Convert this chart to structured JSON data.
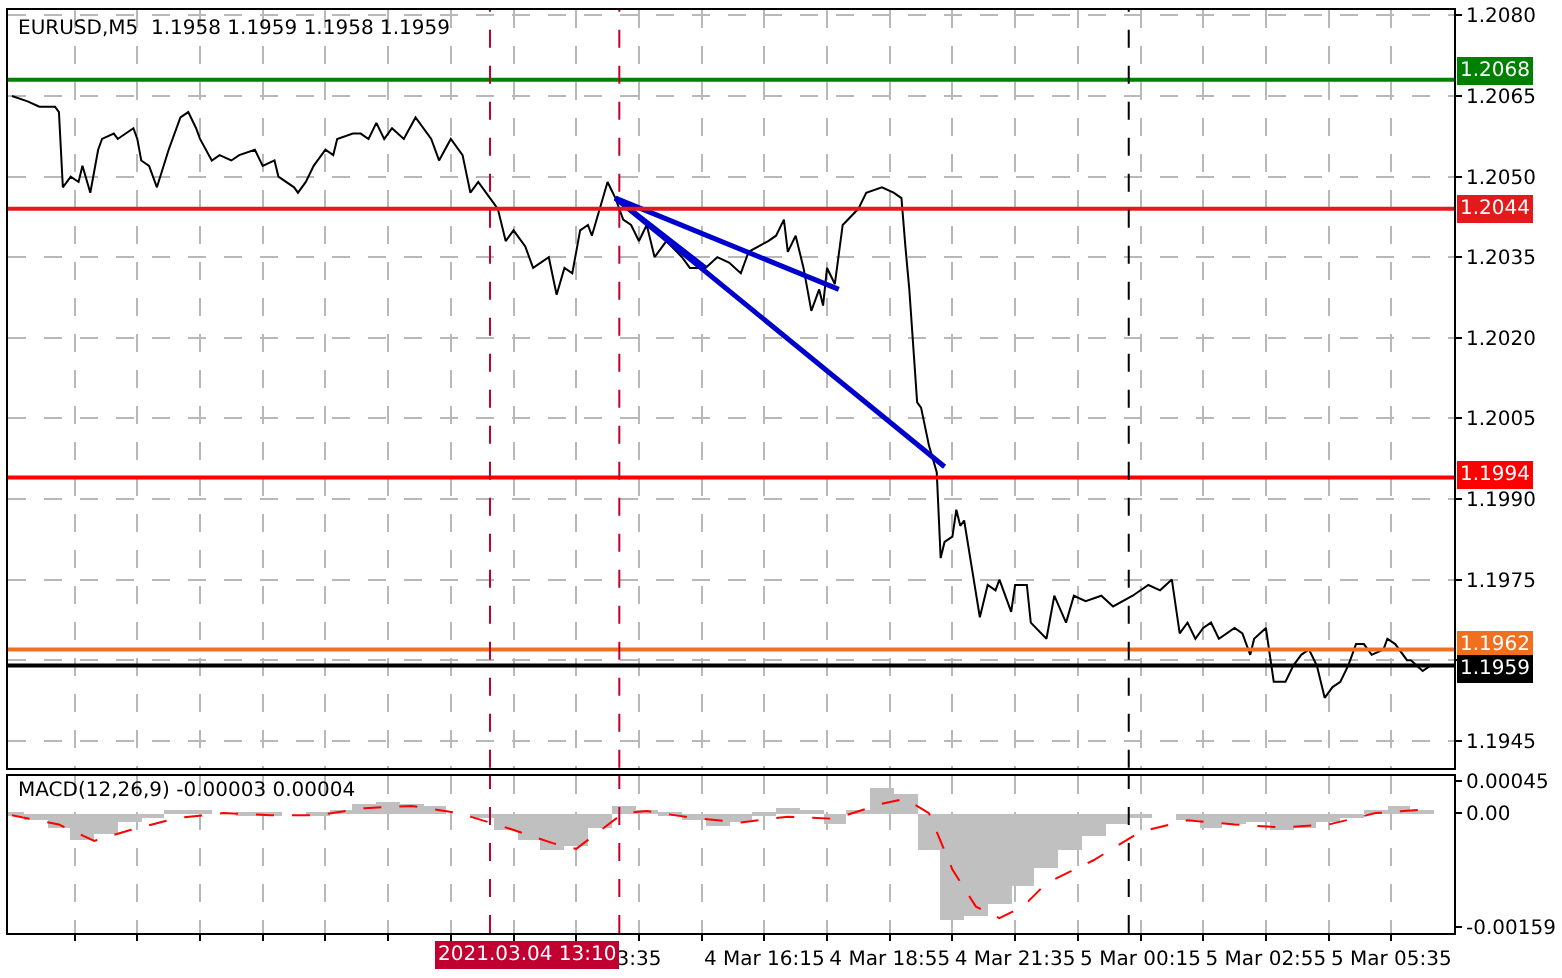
{
  "chart_data": [
    {
      "type": "line",
      "title": "EURUSD,M5  1.1958 1.1959 1.1958 1.1959",
      "series": [
        {
          "color": "#000000",
          "x": [
            "2021-03-04T00:15",
            "2021-03-04T00:35",
            "2021-03-04T00:50",
            "2021-03-04T01:10",
            "2021-03-04T01:15",
            "2021-03-04T01:20",
            "2021-03-04T01:30",
            "2021-03-04T01:40",
            "2021-03-04T01:45",
            "2021-03-04T01:55",
            "2021-03-04T02:05",
            "2021-03-04T02:10",
            "2021-03-04T02:25",
            "2021-03-04T02:30",
            "2021-03-04T02:50",
            "2021-03-04T02:55",
            "2021-03-04T03:00",
            "2021-03-04T03:10",
            "2021-03-04T03:20",
            "2021-03-04T03:35",
            "2021-03-04T03:50",
            "2021-03-04T04:00",
            "2021-03-04T04:10",
            "2021-03-04T04:15",
            "2021-03-04T04:30",
            "2021-03-04T04:40",
            "2021-03-04T04:55",
            "2021-03-04T05:05",
            "2021-03-04T05:25",
            "2021-03-04T05:35",
            "2021-03-04T05:50",
            "2021-03-04T05:55",
            "2021-03-04T06:15",
            "2021-03-04T06:20",
            "2021-03-04T06:30",
            "2021-03-04T06:40",
            "2021-03-04T06:55",
            "2021-03-04T07:05",
            "2021-03-04T07:10",
            "2021-03-04T07:30",
            "2021-03-04T07:40",
            "2021-03-04T07:50",
            "2021-03-04T08:00",
            "2021-03-04T08:10",
            "2021-03-04T08:20",
            "2021-03-04T08:35",
            "2021-03-04T08:50",
            "2021-03-04T09:10",
            "2021-03-04T09:20",
            "2021-03-04T09:35",
            "2021-03-04T09:50",
            "2021-03-04T10:00",
            "2021-03-04T10:10",
            "2021-03-04T10:25",
            "2021-03-04T10:35",
            "2021-03-04T10:45",
            "2021-03-04T10:55",
            "2021-03-04T11:10",
            "2021-03-04T11:20",
            "2021-03-04T11:40",
            "2021-03-04T11:50",
            "2021-03-04T12:00",
            "2021-03-04T12:10",
            "2021-03-04T12:20",
            "2021-03-04T12:30",
            "2021-03-04T12:35",
            "2021-03-04T12:55",
            "2021-03-04T13:05",
            "2021-03-04T13:15",
            "2021-03-04T13:25",
            "2021-03-04T13:35",
            "2021-03-04T13:45",
            "2021-03-04T13:55",
            "2021-03-04T14:10",
            "2021-03-04T14:30",
            "2021-03-04T14:40",
            "2021-03-04T15:00",
            "2021-03-04T15:15",
            "2021-03-04T15:30",
            "2021-03-04T15:45",
            "2021-03-04T15:55",
            "2021-03-04T16:20",
            "2021-03-04T16:30",
            "2021-03-04T16:40",
            "2021-03-04T16:45",
            "2021-03-04T16:55",
            "2021-03-04T17:05",
            "2021-03-04T17:15",
            "2021-03-04T17:25",
            "2021-03-04T17:30",
            "2021-03-04T17:35",
            "2021-03-04T17:45",
            "2021-03-04T17:55",
            "2021-03-04T18:15",
            "2021-03-04T18:25",
            "2021-03-04T18:45",
            "2021-03-04T19:00",
            "2021-03-04T19:10",
            "2021-03-04T19:15",
            "2021-03-04T19:20",
            "2021-03-04T19:30",
            "2021-03-04T19:35",
            "2021-03-04T19:45",
            "2021-03-04T19:55",
            "2021-03-04T20:00",
            "2021-03-04T20:05",
            "2021-03-04T20:15",
            "2021-03-04T20:20",
            "2021-03-04T20:25",
            "2021-03-04T20:30",
            "2021-03-04T20:40",
            "2021-03-04T20:50",
            "2021-03-04T21:00",
            "2021-03-04T21:10",
            "2021-03-04T21:15",
            "2021-03-04T21:30",
            "2021-03-04T21:35",
            "2021-03-04T21:50",
            "2021-03-04T21:55",
            "2021-03-04T22:15",
            "2021-03-04T22:25",
            "2021-03-04T22:40",
            "2021-03-04T22:50",
            "2021-03-04T23:05",
            "2021-03-04T23:25",
            "2021-03-04T23:40",
            "2021-03-05T00:05",
            "2021-03-05T00:25",
            "2021-03-05T00:40",
            "2021-03-05T00:55",
            "2021-03-05T01:05",
            "2021-03-05T01:15",
            "2021-03-05T01:25",
            "2021-03-05T01:35",
            "2021-03-05T01:45",
            "2021-03-05T01:55",
            "2021-03-05T02:15",
            "2021-03-05T02:25",
            "2021-03-05T02:35",
            "2021-03-05T02:40",
            "2021-03-05T02:55",
            "2021-03-05T03:00",
            "2021-03-05T03:05",
            "2021-03-05T03:20",
            "2021-03-05T03:30",
            "2021-03-05T03:40",
            "2021-03-05T03:50",
            "2021-03-05T04:00",
            "2021-03-05T04:10",
            "2021-03-05T04:20",
            "2021-03-05T04:30",
            "2021-03-05T04:40",
            "2021-03-05T04:50",
            "2021-03-05T05:00",
            "2021-03-05T05:10",
            "2021-03-05T05:25",
            "2021-03-05T05:30",
            "2021-03-05T05:40",
            "2021-03-05T05:55",
            "2021-03-05T06:00",
            "2021-03-05T06:15",
            "2021-03-05T06:25"
          ],
          "values": [
            1.2065,
            1.2064,
            1.2063,
            1.2063,
            1.2062,
            1.2048,
            1.205,
            1.2049,
            1.2052,
            1.2047,
            1.2055,
            1.2057,
            1.2058,
            1.2057,
            1.2059,
            1.2057,
            1.2053,
            1.2052,
            1.2048,
            1.2055,
            1.2061,
            1.2062,
            1.2059,
            1.2057,
            1.2053,
            1.2054,
            1.2053,
            1.2054,
            1.2055,
            1.2052,
            1.2053,
            1.205,
            1.2048,
            1.2047,
            1.2049,
            1.2052,
            1.2055,
            1.2054,
            1.2057,
            1.2058,
            1.2058,
            1.2057,
            1.206,
            1.2057,
            1.2059,
            1.2057,
            1.2061,
            1.2057,
            1.2053,
            1.2057,
            1.2054,
            1.2047,
            1.2049,
            1.2046,
            1.2044,
            1.2038,
            1.204,
            1.2037,
            1.2033,
            1.2035,
            1.2028,
            1.2033,
            1.2032,
            1.204,
            1.2041,
            1.2039,
            1.2049,
            1.2046,
            1.2042,
            1.2041,
            1.2038,
            1.2041,
            1.2035,
            1.2038,
            1.2035,
            1.2033,
            1.2033,
            1.2035,
            1.2034,
            1.2032,
            1.2036,
            1.2038,
            1.2039,
            1.2042,
            1.2036,
            1.2039,
            1.2033,
            1.2025,
            1.2029,
            1.2026,
            1.2033,
            1.203,
            1.2041,
            1.2044,
            1.2047,
            1.2048,
            1.2047,
            1.2046,
            1.2037,
            1.2029,
            1.2008,
            1.2007,
            1.2,
            1.1995,
            1.1979,
            1.1982,
            1.1983,
            1.1988,
            1.1985,
            1.1986,
            1.1977,
            1.1968,
            1.1974,
            1.1973,
            1.1975,
            1.1969,
            1.1974,
            1.1974,
            1.1967,
            1.1964,
            1.1972,
            1.1967,
            1.1972,
            1.1971,
            1.1972,
            1.197,
            1.1972,
            1.1974,
            1.1973,
            1.1975,
            1.1965,
            1.1967,
            1.1964,
            1.1966,
            1.1967,
            1.1964,
            1.1966,
            1.1965,
            1.1961,
            1.1964,
            1.1966,
            1.1961,
            1.1956,
            1.1956,
            1.1959,
            1.1961,
            1.1962,
            1.1959,
            1.1953,
            1.1955,
            1.1956,
            1.1959,
            1.1963,
            1.1963,
            1.1961,
            1.1962,
            1.1964,
            1.1963,
            1.196,
            1.196,
            1.1958,
            1.1959
          ]
        },
        {
          "color": "#0000cd",
          "x": [
            "2021-03-04T13:05",
            "2021-03-04T17:50"
          ],
          "values": [
            1.2046,
            1.2029
          ]
        },
        {
          "color": "#0000cd",
          "x": [
            "2021-03-04T13:05",
            "2021-03-04T20:05"
          ],
          "values": [
            1.2046,
            1.1996
          ]
        },
        {
          "color": "#0000cd",
          "x": [
            "2021-03-04T13:05",
            "2021-03-04T15:00"
          ],
          "values": [
            1.2046,
            1.2033
          ]
        }
      ],
      "xlim": [
        "2021-03-04T00:10",
        "2021-03-05T06:55"
      ],
      "xticks": [
        {
          "value": "2021-03-04T01:35",
          "label": null
        },
        {
          "value": "2021-03-04T02:55",
          "label": null
        },
        {
          "value": "2021-03-04T04:15",
          "label": null
        },
        {
          "value": "2021-03-04T05:35",
          "label": null
        },
        {
          "value": "2021-03-04T06:55",
          "label": null
        },
        {
          "value": "2021-03-04T08:15",
          "label": null
        },
        {
          "value": "2021-03-04T09:35",
          "label": null
        },
        {
          "value": "2021-03-04T10:55",
          "label": null
        },
        {
          "value": "2021-03-04T12:15",
          "label": null
        },
        {
          "value": "2021-03-04T13:35",
          "label": null
        },
        {
          "value": "2021-03-04T14:55",
          "label": null
        },
        {
          "value": "2021-03-04T16:15",
          "label": null
        },
        {
          "value": "2021-03-04T17:35",
          "label": null
        },
        {
          "value": "2021-03-04T18:55",
          "label": null
        },
        {
          "value": "2021-03-04T20:15",
          "label": null
        },
        {
          "value": "2021-03-04T21:35",
          "label": null
        },
        {
          "value": "2021-03-04T22:55",
          "label": null
        },
        {
          "value": "2021-03-05T00:15",
          "label": null
        },
        {
          "value": "2021-03-05T01:35",
          "label": null
        },
        {
          "value": "2021-03-05T02:55",
          "label": null
        },
        {
          "value": "2021-03-05T04:15",
          "label": null
        },
        {
          "value": "2021-03-05T05:35",
          "label": null
        }
      ],
      "ylim": [
        1.194,
        1.2081
      ],
      "yticks": [
        {
          "value": 1.208,
          "label": "1.2080"
        },
        {
          "value": 1.2065,
          "label": "1.2065"
        },
        {
          "value": 1.205,
          "label": "1.2050"
        },
        {
          "value": 1.2035,
          "label": "1.2035"
        },
        {
          "value": 1.202,
          "label": "1.2020"
        },
        {
          "value": 1.2005,
          "label": "1.2005"
        },
        {
          "value": 1.199,
          "label": "1.1990"
        },
        {
          "value": 1.1975,
          "label": "1.1975"
        },
        {
          "value": 1.196,
          "label": null
        },
        {
          "value": 1.1945,
          "label": "1.1945"
        }
      ],
      "ref_lines": [
        {
          "axis": "y",
          "value": 1.2068,
          "label": "1.2068",
          "color": "#008000"
        },
        {
          "axis": "y",
          "value": 1.2044,
          "label": "1.2044",
          "color": "#e31a1c"
        },
        {
          "axis": "y",
          "value": 1.1994,
          "label": "1.1994",
          "color": "#ff0000"
        },
        {
          "axis": "y",
          "value": 1.1962,
          "label": "1.1962",
          "color": "#f07020"
        },
        {
          "axis": "y",
          "value": 1.1959,
          "label": "1.1959",
          "color": "#000000"
        },
        {
          "axis": "x",
          "value": "2021-03-04T10:25",
          "color": "#c00030",
          "line_style": "dashed"
        },
        {
          "axis": "x",
          "value": "2021-03-04T13:10",
          "color": "#c00030",
          "line_style": "dashed"
        },
        {
          "axis": "x",
          "value": "2021-03-05T00:00",
          "color": "#000000",
          "line_style": "dashed"
        }
      ],
      "grid": true,
      "tick_labels": "y"
    },
    {
      "type": "bar",
      "title": "MACD(12,26,9) -0.00003 0.00004",
      "x": [
        "2021-03-04T00:15",
        "2021-03-04T00:45",
        "2021-03-04T01:15",
        "2021-03-04T01:45",
        "2021-03-04T02:15",
        "2021-03-04T02:45",
        "2021-03-04T03:15",
        "2021-03-04T03:45",
        "2021-03-04T04:15",
        "2021-03-04T04:45",
        "2021-03-04T05:15",
        "2021-03-04T05:45",
        "2021-03-04T06:15",
        "2021-03-04T06:45",
        "2021-03-04T07:15",
        "2021-03-04T07:45",
        "2021-03-04T08:15",
        "2021-03-04T08:45",
        "2021-03-04T09:15",
        "2021-03-04T09:45",
        "2021-03-04T10:15",
        "2021-03-04T10:45",
        "2021-03-04T11:15",
        "2021-03-04T11:45",
        "2021-03-04T12:15",
        "2021-03-04T12:45",
        "2021-03-04T13:15",
        "2021-03-04T13:45",
        "2021-03-04T14:15",
        "2021-03-04T14:45",
        "2021-03-04T15:15",
        "2021-03-04T15:45",
        "2021-03-04T16:15",
        "2021-03-04T16:45",
        "2021-03-04T17:15",
        "2021-03-04T17:45",
        "2021-03-04T18:15",
        "2021-03-04T18:45",
        "2021-03-04T19:15",
        "2021-03-04T19:45",
        "2021-03-04T20:15",
        "2021-03-04T20:45",
        "2021-03-04T21:15",
        "2021-03-04T21:45",
        "2021-03-04T22:15",
        "2021-03-04T22:45",
        "2021-03-04T23:15",
        "2021-03-04T23:45",
        "2021-03-05T00:15",
        "2021-03-05T00:45",
        "2021-03-05T01:15",
        "2021-03-05T01:45",
        "2021-03-05T02:15",
        "2021-03-05T02:45",
        "2021-03-05T03:15",
        "2021-03-05T03:45",
        "2021-03-05T04:15",
        "2021-03-05T04:45",
        "2021-03-05T05:15",
        "2021-03-05T05:45",
        "2021-03-05T06:15"
      ],
      "series": [
        {
          "color": "#c0c0c0",
          "values": [
            -5e-05,
            -0.0001,
            -0.0002,
            -0.00037,
            -0.0003,
            -0.00013,
            -7e-05,
            3e-05,
            5e-05,
            0,
            -5e-05,
            -3e-05,
            0,
            -3e-05,
            5e-05,
            0.00012,
            0.00016,
            0.00014,
            9e-05,
            0,
            -8e-05,
            -0.00024,
            -0.00039,
            -0.00051,
            -0.00047,
            -0.00021,
            0.0001,
            3e-05,
            -3e-05,
            -0.0001,
            -0.00018,
            -0.00013,
            -5e-05,
            8e-05,
            3e-05,
            -0.00016,
            5e-05,
            0.00034,
            0.00026,
            -0.00052,
            -0.00151,
            -0.00144,
            -0.00128,
            -0.00102,
            -0.00076,
            -0.00052,
            -0.00033,
            -0.00016,
            -7e-05,
            0,
            -0.0001,
            -0.0002,
            -0.00016,
            -0.00013,
            -0.00024,
            -0.0002,
            -0.00013,
            -8e-05,
            5e-05,
            0.0001,
            5e-05
          ]
        },
        {
          "type": "line",
          "color": "#ff0000",
          "line_style": "dashed",
          "x": [
            "2021-03-04T00:15",
            "2021-03-04T01:15",
            "2021-03-04T02:00",
            "2021-03-04T02:45",
            "2021-03-04T03:45",
            "2021-03-04T04:45",
            "2021-03-04T05:45",
            "2021-03-04T06:45",
            "2021-03-04T07:45",
            "2021-03-04T08:45",
            "2021-03-04T09:45",
            "2021-03-04T10:45",
            "2021-03-04T11:45",
            "2021-03-04T12:15",
            "2021-03-04T13:15",
            "2021-03-04T13:45",
            "2021-03-04T14:45",
            "2021-03-04T15:45",
            "2021-03-04T16:45",
            "2021-03-04T17:45",
            "2021-03-04T18:45",
            "2021-03-04T19:15",
            "2021-03-04T19:45",
            "2021-03-04T20:15",
            "2021-03-04T20:45",
            "2021-03-04T21:15",
            "2021-03-04T21:45",
            "2021-03-04T22:15",
            "2021-03-04T23:15",
            "2021-03-05T00:15",
            "2021-03-05T01:15",
            "2021-03-05T02:15",
            "2021-03-05T03:15",
            "2021-03-05T04:15",
            "2021-03-05T05:15",
            "2021-03-05T06:15"
          ],
          "values": [
            -3e-05,
            -0.00016,
            -0.00039,
            -0.00024,
            -7e-05,
            0,
            -3e-05,
            -3e-05,
            7e-05,
            0.0001,
            0,
            -0.0002,
            -0.00042,
            -0.0005,
            0,
            3e-05,
            -7e-05,
            -0.00013,
            -5e-05,
            -8e-05,
            0.00013,
            0.0002,
            0,
            -0.00079,
            -0.00131,
            -0.00147,
            -0.00131,
            -0.00098,
            -0.00066,
            -0.00026,
            -0.0001,
            -0.00016,
            -0.0002,
            -0.00016,
            0,
            5e-05
          ]
        }
      ],
      "xlim": [
        "2021-03-04T00:10",
        "2021-03-05T06:55"
      ],
      "xticks": [
        {
          "value": "2021-03-04T01:35",
          "label": null
        },
        {
          "value": "2021-03-04T02:55",
          "label": null
        },
        {
          "value": "2021-03-04T04:15",
          "label": null
        },
        {
          "value": "2021-03-04T05:35",
          "label": null
        },
        {
          "value": "2021-03-04T06:55",
          "label": null
        },
        {
          "value": "2021-03-04T08:15",
          "label": null
        },
        {
          "value": "2021-03-04T09:35",
          "label": null
        },
        {
          "value": "2021-03-04T10:55",
          "label": null
        },
        {
          "value": "2021-03-04T12:15",
          "label": null
        },
        {
          "value": "2021-03-04T13:35",
          "label": "3:35"
        },
        {
          "value": "2021-03-04T14:55",
          "label": null
        },
        {
          "value": "2021-03-04T16:15",
          "label": "4 Mar 16:15"
        },
        {
          "value": "2021-03-04T17:35",
          "label": null
        },
        {
          "value": "2021-03-04T18:55",
          "label": "4 Mar 18:55"
        },
        {
          "value": "2021-03-04T20:15",
          "label": null
        },
        {
          "value": "2021-03-04T21:35",
          "label": "4 Mar 21:35"
        },
        {
          "value": "2021-03-04T22:55",
          "label": null
        },
        {
          "value": "2021-03-05T00:15",
          "label": "5 Mar 00:15"
        },
        {
          "value": "2021-03-05T01:35",
          "label": null
        },
        {
          "value": "2021-03-05T02:55",
          "label": "5 Mar 02:55"
        },
        {
          "value": "2021-03-05T04:15",
          "label": null
        },
        {
          "value": "2021-03-05T05:35",
          "label": "5 Mar 05:35"
        }
      ],
      "ylim": [
        -0.00168,
        0.00052
      ],
      "yticks": [
        {
          "value": 0.00045,
          "label": "0.00045"
        },
        {
          "value": 0,
          "label": "0.00"
        },
        {
          "value": -0.00159,
          "label": "-0.00159"
        }
      ],
      "ref_lines": [
        {
          "axis": "x",
          "value": "2021-03-04T10:25",
          "color": "#c00030",
          "line_style": "dashed"
        },
        {
          "axis": "x",
          "value": "2021-03-04T13:10",
          "label": "2021.03.04 13:10",
          "color": "#c00030",
          "line_style": "dashed"
        },
        {
          "axis": "x",
          "value": "2021-03-05T00:00",
          "color": "#000000",
          "line_style": "dashed"
        }
      ],
      "grid": "x"
    }
  ]
}
